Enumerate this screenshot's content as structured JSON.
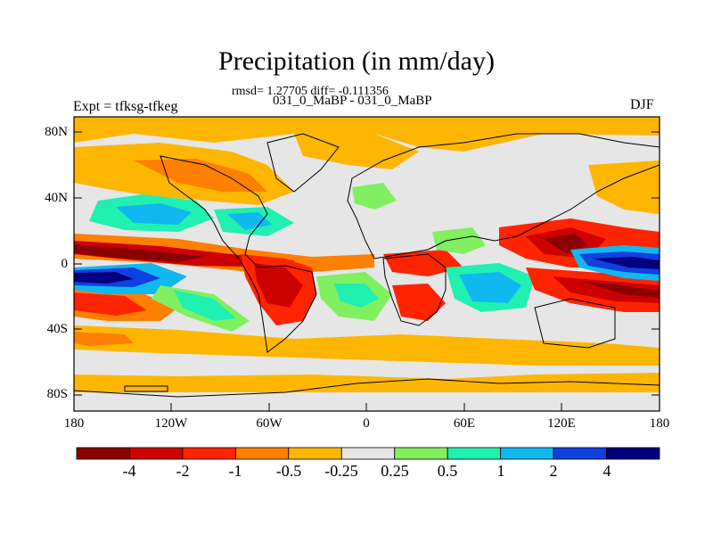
{
  "title": "Precipitation (in mm/day)",
  "stats": "rmsd= 1.27705  diff= -0.111356",
  "subtitle": "031_0_MaBP - 031_0_MaBP",
  "left_label": "Expt = tfksg-tfkeg",
  "right_label": "DJF",
  "axes": {
    "x_ticks": [
      "180",
      "120W",
      "60W",
      "0",
      "60E",
      "120E",
      "180"
    ],
    "y_ticks": [
      "80N",
      "40N",
      "0",
      "40S",
      "80S"
    ]
  },
  "colorbar": {
    "labels": [
      "-4",
      "-2",
      "-1",
      "-0.5",
      "-0.25",
      "0.25",
      "0.5",
      "1",
      "2",
      "4"
    ],
    "colors": [
      "#8b0000",
      "#cd0000",
      "#ff2400",
      "#ff7f00",
      "#ffb600",
      "#e6e6e6",
      "#80f060",
      "#20f0b0",
      "#10b8f0",
      "#1040e0",
      "#000080"
    ]
  },
  "palette": {
    "land_line": "#000000",
    "background": "#e6e6e6"
  }
}
